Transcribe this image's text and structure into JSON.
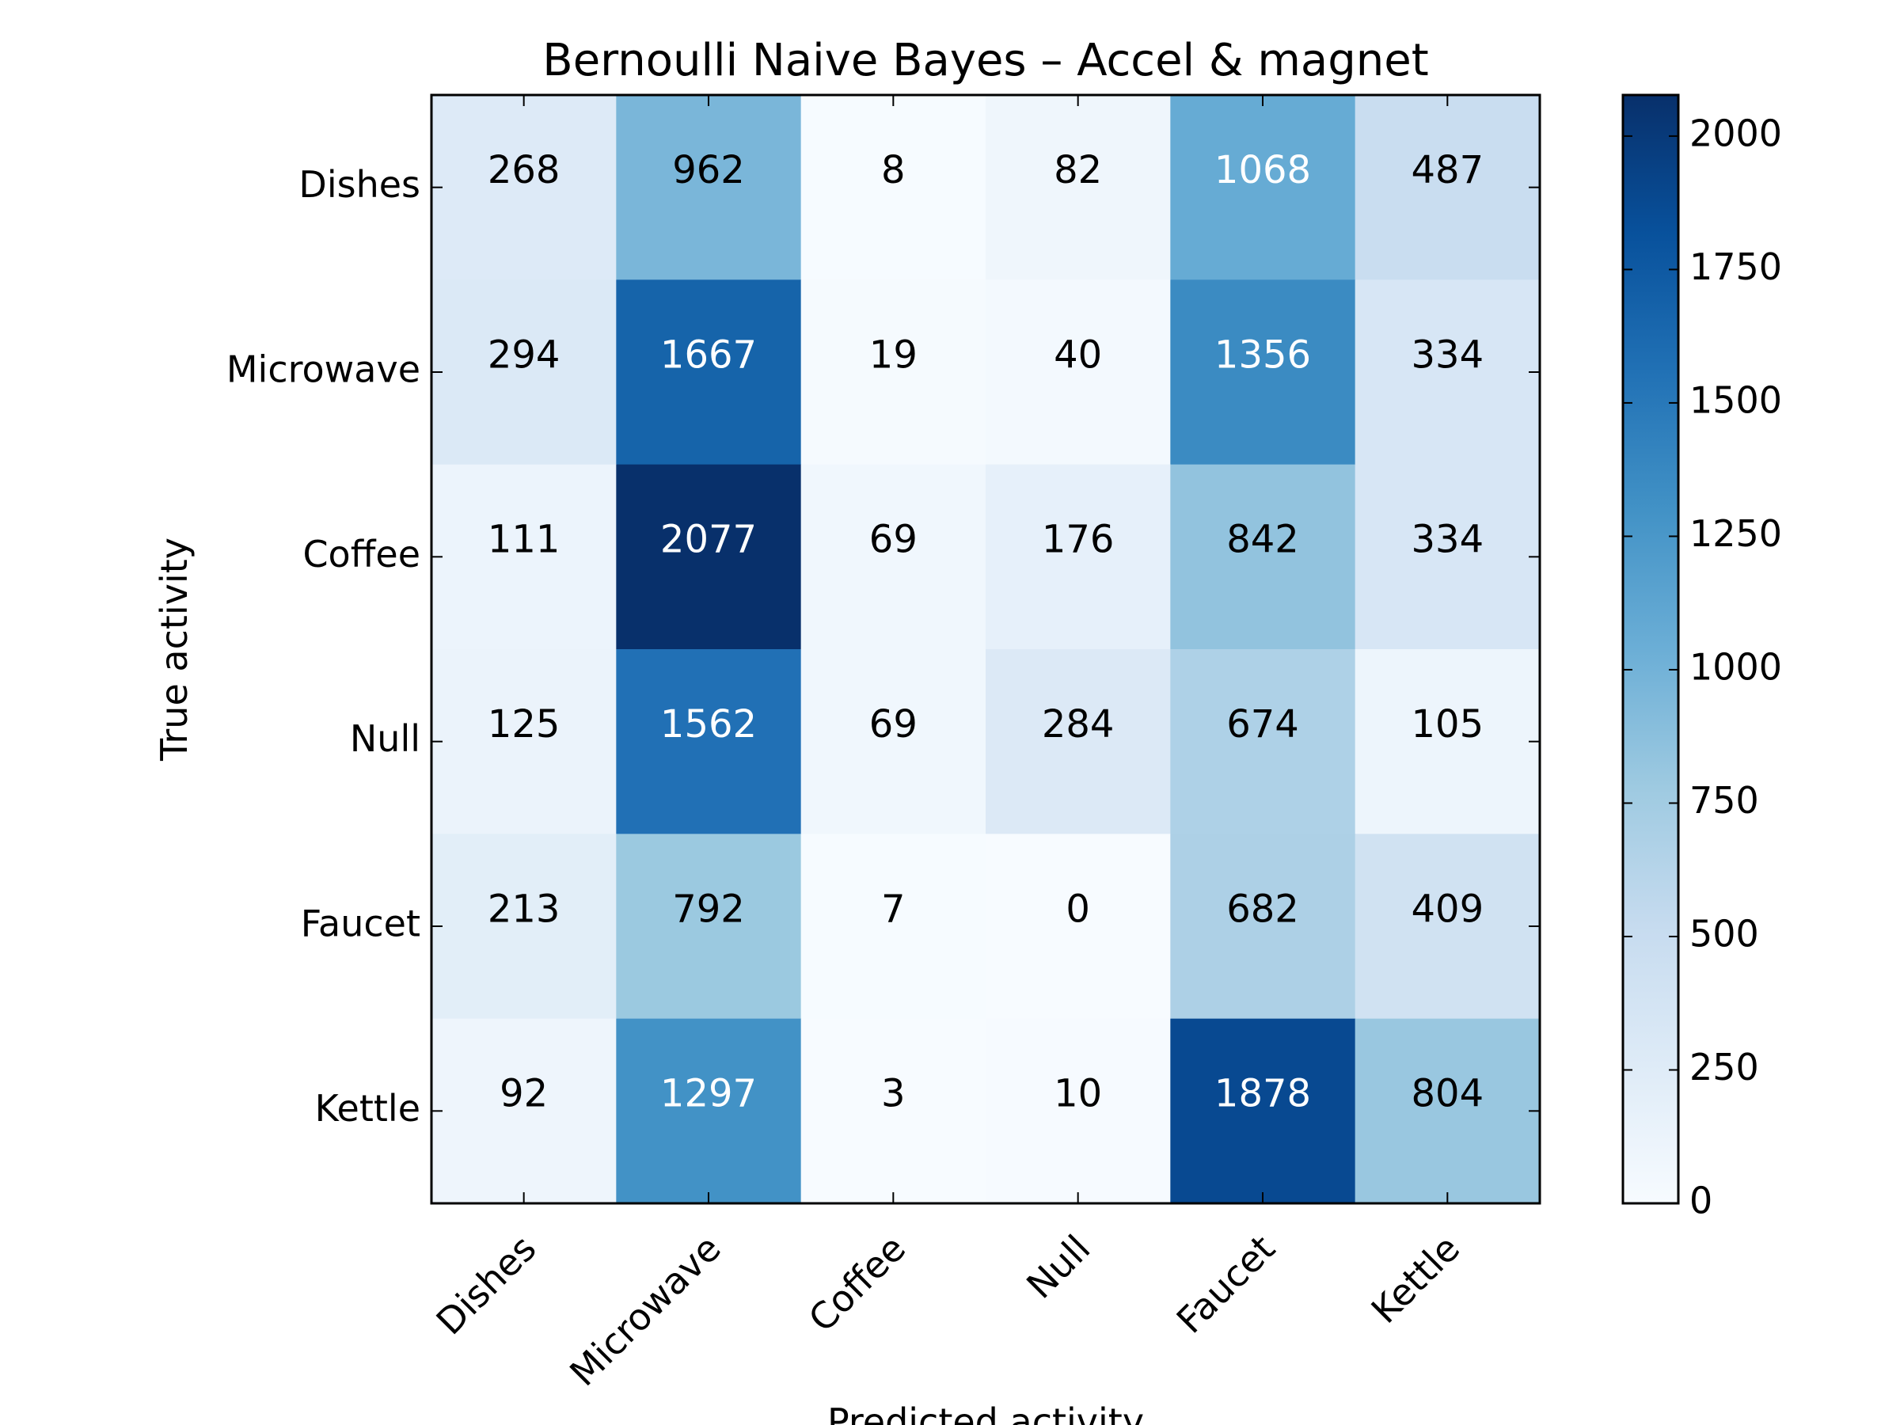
{
  "chart_data": {
    "type": "heatmap",
    "title": "Bernoulli Naive Bayes – Accel & magnet",
    "xlabel": "Predicted activity",
    "ylabel": "True activity",
    "x_categories": [
      "Dishes",
      "Microwave",
      "Coffee",
      "Null",
      "Faucet",
      "Kettle"
    ],
    "y_categories": [
      "Dishes",
      "Microwave",
      "Coffee",
      "Null",
      "Faucet",
      "Kettle"
    ],
    "values": [
      [
        268,
        962,
        8,
        82,
        1068,
        487
      ],
      [
        294,
        1667,
        19,
        40,
        1356,
        334
      ],
      [
        111,
        2077,
        69,
        176,
        842,
        334
      ],
      [
        125,
        1562,
        69,
        284,
        674,
        105
      ],
      [
        213,
        792,
        7,
        0,
        682,
        409
      ],
      [
        92,
        1297,
        3,
        10,
        1878,
        804
      ]
    ],
    "colormap": "Blues",
    "color_range": [
      0,
      2077
    ],
    "colorbar_ticks": [
      0,
      250,
      500,
      750,
      1000,
      1250,
      1500,
      1750,
      2000
    ],
    "grid": false,
    "legend": "colorbar-right"
  }
}
